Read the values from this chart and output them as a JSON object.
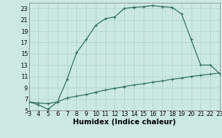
{
  "xlabel": "Humidex (Indice chaleur)",
  "bg_color": "#cce8e4",
  "grid_color": "#aed4cf",
  "line_color": "#2d6b60",
  "curve1_x": [
    3,
    4,
    5,
    6,
    7,
    8,
    9,
    10,
    11,
    12,
    13,
    14,
    15,
    16,
    17,
    18,
    19,
    20,
    21,
    22,
    23
  ],
  "curve1_y": [
    6.5,
    6.0,
    5.2,
    6.5,
    10.5,
    15.2,
    17.5,
    20.0,
    21.2,
    21.5,
    23.0,
    23.2,
    23.3,
    23.5,
    23.3,
    23.2,
    22.0,
    17.5,
    13.0,
    13.0,
    11.5
  ],
  "curve2_x": [
    3,
    4,
    5,
    6,
    7,
    8,
    9,
    10,
    11,
    12,
    13,
    14,
    15,
    16,
    17,
    18,
    19,
    20,
    21,
    22,
    23
  ],
  "curve2_y": [
    6.5,
    6.3,
    6.2,
    6.5,
    7.2,
    7.5,
    7.8,
    8.2,
    8.6,
    8.9,
    9.2,
    9.5,
    9.7,
    10.0,
    10.2,
    10.5,
    10.7,
    11.0,
    11.2,
    11.4,
    11.6
  ],
  "xlim": [
    3,
    23
  ],
  "ylim": [
    5,
    24
  ],
  "xticks": [
    3,
    4,
    5,
    6,
    7,
    8,
    9,
    10,
    11,
    12,
    13,
    14,
    15,
    16,
    17,
    18,
    19,
    20,
    21,
    22,
    23
  ],
  "yticks": [
    5,
    7,
    9,
    11,
    13,
    15,
    17,
    19,
    21,
    23
  ],
  "marker_size": 2.5,
  "line_width": 0.9,
  "xlabel_fontsize": 7.5,
  "tick_fontsize": 6
}
